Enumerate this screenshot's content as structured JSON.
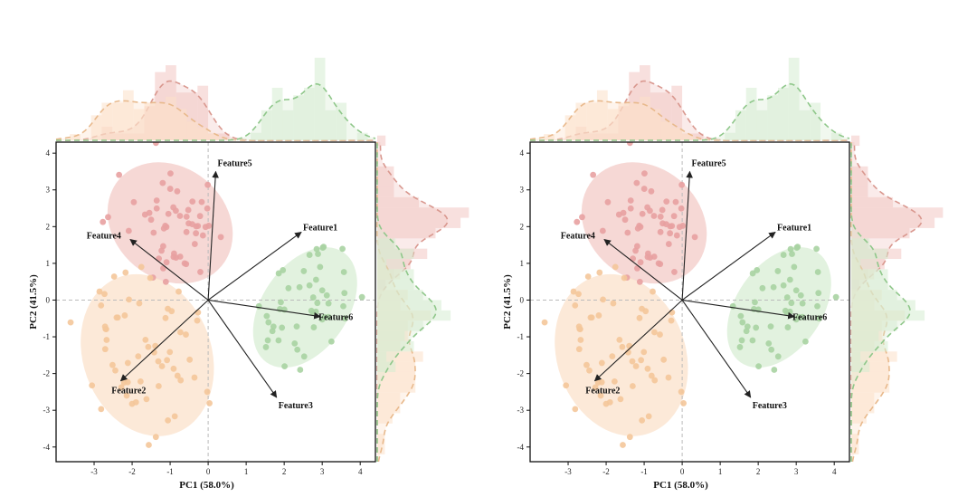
{
  "colors": {
    "group_red": "#e8a1a1",
    "group_orange": "#f4c79a",
    "group_green": "#a9d3a2",
    "ellipse_red": "#f2c7c3",
    "ellipse_orange": "#fbe0c8",
    "ellipse_green": "#d6ecd2",
    "kde_red": "#d9988f",
    "kde_orange": "#e8b98c",
    "kde_green": "#8fc78a",
    "arrow": "#222222",
    "refline": "#bbbbbb"
  },
  "chart_data": [
    {
      "type": "scatter",
      "variant": "pca-biplot-with-marginals",
      "xlabel": "PC1 (58.0%)",
      "ylabel": "PC2 (41.5%)",
      "xlim": [
        -4,
        4.4
      ],
      "ylim": [
        -4.4,
        4.3
      ],
      "xticks": [
        -3,
        -2,
        -1,
        0,
        1,
        2,
        3,
        4
      ],
      "yticks": [
        -4,
        -3,
        -2,
        -1,
        0,
        1,
        2,
        3,
        4
      ],
      "groups": [
        {
          "name": "red",
          "center": [
            -1.0,
            2.1
          ],
          "sx": 0.65,
          "sy": 0.85,
          "angle": 50,
          "count": 55,
          "seed": 11
        },
        {
          "name": "orange",
          "center": [
            -1.6,
            -1.5
          ],
          "sx": 0.75,
          "sy": 1.05,
          "angle": 20,
          "count": 60,
          "seed": 23
        },
        {
          "name": "green",
          "center": [
            2.55,
            -0.2
          ],
          "sx": 0.5,
          "sy": 0.85,
          "angle": -35,
          "count": 50,
          "seed": 37
        }
      ],
      "loadings": [
        {
          "label": "Feature1",
          "x": 2.45,
          "y": 1.85
        },
        {
          "label": "Feature2",
          "x": -2.3,
          "y": -2.2
        },
        {
          "label": "Feature3",
          "x": 1.8,
          "y": -2.65
        },
        {
          "label": "Feature4",
          "x": -2.05,
          "y": 1.65
        },
        {
          "label": "Feature5",
          "x": 0.2,
          "y": 3.5
        },
        {
          "label": "Feature6",
          "x": 2.95,
          "y": -0.45
        }
      ]
    },
    {
      "type": "scatter",
      "variant": "pca-biplot-with-marginals",
      "xlabel": "PC1 (58.0%)",
      "ylabel": "PC2 (41.5%)",
      "xlim": [
        -4,
        4.4
      ],
      "ylim": [
        -4.4,
        4.3
      ],
      "xticks": [
        -3,
        -2,
        -1,
        0,
        1,
        2,
        3,
        4
      ],
      "yticks": [
        -4,
        -3,
        -2,
        -1,
        0,
        1,
        2,
        3,
        4
      ],
      "groups": [
        {
          "name": "red",
          "center": [
            -1.0,
            2.1
          ],
          "sx": 0.65,
          "sy": 0.85,
          "angle": 50,
          "count": 55,
          "seed": 11
        },
        {
          "name": "orange",
          "center": [
            -1.6,
            -1.5
          ],
          "sx": 0.75,
          "sy": 1.05,
          "angle": 20,
          "count": 60,
          "seed": 23
        },
        {
          "name": "green",
          "center": [
            2.55,
            -0.2
          ],
          "sx": 0.5,
          "sy": 0.85,
          "angle": -35,
          "count": 50,
          "seed": 37
        }
      ],
      "loadings": [
        {
          "label": "Feature1",
          "x": 2.45,
          "y": 1.85
        },
        {
          "label": "Feature2",
          "x": -2.3,
          "y": -2.2
        },
        {
          "label": "Feature3",
          "x": 1.8,
          "y": -2.65
        },
        {
          "label": "Feature4",
          "x": -2.05,
          "y": 1.65
        },
        {
          "label": "Feature5",
          "x": 0.2,
          "y": 3.5
        },
        {
          "label": "Feature6",
          "x": 2.95,
          "y": -0.45
        }
      ]
    }
  ]
}
